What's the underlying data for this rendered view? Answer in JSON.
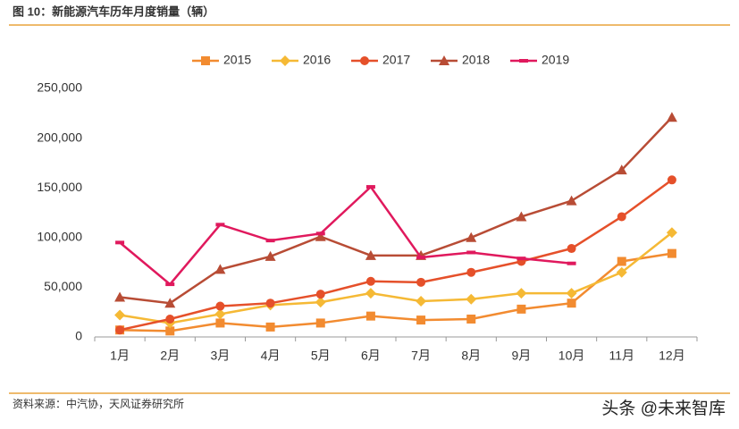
{
  "chart_data": {
    "type": "line",
    "title": "图 10：新能源汽车历年月度销量（辆）",
    "source": "资料来源：中汽协，天风证券研究所",
    "watermark": "头条 @未来智库",
    "categories": [
      "1月",
      "2月",
      "3月",
      "4月",
      "5月",
      "6月",
      "7月",
      "8月",
      "9月",
      "10月",
      "11月",
      "12月"
    ],
    "series": [
      {
        "name": "2015",
        "color": "#f28b30",
        "marker": "square",
        "values": [
          7000,
          6000,
          14000,
          10000,
          14000,
          21000,
          17000,
          18000,
          28000,
          34000,
          76000,
          84000
        ]
      },
      {
        "name": "2016",
        "color": "#f5b935",
        "marker": "diamond",
        "values": [
          22000,
          14000,
          23000,
          32000,
          35000,
          44000,
          36000,
          38000,
          44000,
          44000,
          65000,
          105000
        ]
      },
      {
        "name": "2017",
        "color": "#e5502a",
        "marker": "circle",
        "values": [
          7000,
          18000,
          31000,
          34000,
          43000,
          56000,
          55000,
          65000,
          76000,
          89000,
          121000,
          158000
        ]
      },
      {
        "name": "2018",
        "color": "#b84c35",
        "marker": "triangle",
        "values": [
          40000,
          34000,
          68000,
          81000,
          101000,
          82000,
          82000,
          100000,
          121000,
          137000,
          168000,
          221000
        ]
      },
      {
        "name": "2019",
        "color": "#e0195d",
        "marker": "dash",
        "values": [
          95000,
          53000,
          113000,
          97000,
          104000,
          151000,
          80000,
          85000,
          79000,
          74000,
          null,
          null
        ]
      }
    ],
    "ylim": [
      0,
      250000
    ],
    "yticks": [
      0,
      {
        "value": 50000,
        "label": "50,000"
      },
      {
        "value": 100000,
        "label": "100,000"
      },
      {
        "value": 150000,
        "label": "150,000"
      },
      {
        "value": 200000,
        "label": "200,000"
      },
      {
        "value": 250000,
        "label": "250,000"
      }
    ],
    "grid": false,
    "legend": "top"
  }
}
